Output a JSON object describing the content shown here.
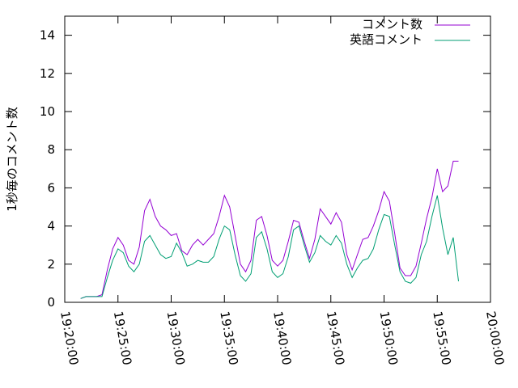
{
  "chart_data": {
    "type": "line",
    "title": "",
    "xlabel": "",
    "ylabel": "1秒毎のコメント数",
    "xlim": [
      "19:20:00",
      "20:00:00"
    ],
    "ylim": [
      0,
      15
    ],
    "x_ticks": [
      "19:20:00",
      "19:25:00",
      "19:30:00",
      "19:35:00",
      "19:40:00",
      "19:45:00",
      "19:50:00",
      "19:55:00",
      "20:00:00"
    ],
    "y_ticks": [
      "0",
      "2",
      "4",
      "6",
      "8",
      "10",
      "12",
      "14"
    ],
    "grid": false,
    "legend_position": "top-right",
    "x": [
      "19:21:30",
      "19:22:00",
      "19:22:30",
      "19:23:00",
      "19:23:30",
      "19:24:00",
      "19:24:30",
      "19:25:00",
      "19:25:30",
      "19:26:00",
      "19:26:30",
      "19:27:00",
      "19:27:30",
      "19:28:00",
      "19:28:30",
      "19:29:00",
      "19:29:30",
      "19:30:00",
      "19:30:30",
      "19:31:00",
      "19:31:30",
      "19:32:00",
      "19:32:30",
      "19:33:00",
      "19:33:30",
      "19:34:00",
      "19:34:30",
      "19:35:00",
      "19:35:30",
      "19:36:00",
      "19:36:30",
      "19:37:00",
      "19:37:30",
      "19:38:00",
      "19:38:30",
      "19:39:00",
      "19:39:30",
      "19:40:00",
      "19:40:30",
      "19:41:00",
      "19:41:30",
      "19:42:00",
      "19:42:30",
      "19:43:00",
      "19:43:30",
      "19:44:00",
      "19:44:30",
      "19:45:00",
      "19:45:30",
      "19:46:00",
      "19:46:30",
      "19:47:00",
      "19:47:30",
      "19:48:00",
      "19:48:30",
      "19:49:00",
      "19:49:30",
      "19:50:00",
      "19:50:30",
      "19:51:00",
      "19:51:30",
      "19:52:00",
      "19:52:30",
      "19:53:00",
      "19:53:30",
      "19:54:00",
      "19:54:30",
      "19:55:00",
      "19:55:30",
      "19:56:00",
      "19:56:30",
      "19:57:00"
    ],
    "series": [
      {
        "name": "コメント数",
        "color": "#9400d3",
        "values": [
          0.2,
          0.3,
          0.3,
          0.3,
          0.4,
          1.7,
          2.8,
          3.4,
          3.0,
          2.2,
          2.0,
          2.9,
          4.8,
          5.4,
          4.5,
          4.0,
          3.8,
          3.5,
          3.6,
          2.7,
          2.5,
          3.0,
          3.3,
          3.0,
          3.3,
          3.6,
          4.5,
          5.6,
          5.0,
          3.5,
          2.0,
          1.6,
          2.2,
          4.3,
          4.5,
          3.5,
          2.2,
          1.9,
          2.2,
          3.2,
          4.3,
          4.2,
          3.2,
          2.3,
          3.3,
          4.9,
          4.5,
          4.1,
          4.7,
          4.2,
          2.5,
          1.7,
          2.5,
          3.3,
          3.4,
          4.0,
          4.8,
          5.8,
          5.3,
          3.6,
          1.8,
          1.4,
          1.4,
          1.9,
          3.1,
          4.4,
          5.5,
          7.0,
          5.8,
          6.1,
          7.4,
          7.4
        ]
      },
      {
        "name": "英語コメント",
        "color": "#009e73",
        "values": [
          0.2,
          0.3,
          0.3,
          0.3,
          0.3,
          1.3,
          2.2,
          2.8,
          2.6,
          1.9,
          1.6,
          2.0,
          3.2,
          3.5,
          3.0,
          2.5,
          2.3,
          2.4,
          3.1,
          2.6,
          1.9,
          2.0,
          2.2,
          2.1,
          2.1,
          2.4,
          3.3,
          4.0,
          3.8,
          2.5,
          1.4,
          1.1,
          1.5,
          3.4,
          3.7,
          2.8,
          1.6,
          1.3,
          1.5,
          2.4,
          3.8,
          4.0,
          3.0,
          2.1,
          2.6,
          3.5,
          3.2,
          3.0,
          3.5,
          3.1,
          2.0,
          1.3,
          1.8,
          2.2,
          2.3,
          2.8,
          3.8,
          4.6,
          4.5,
          3.0,
          1.6,
          1.1,
          1.0,
          1.3,
          2.5,
          3.2,
          4.5,
          5.6,
          3.9,
          2.5,
          3.4,
          1.1
        ]
      }
    ]
  }
}
